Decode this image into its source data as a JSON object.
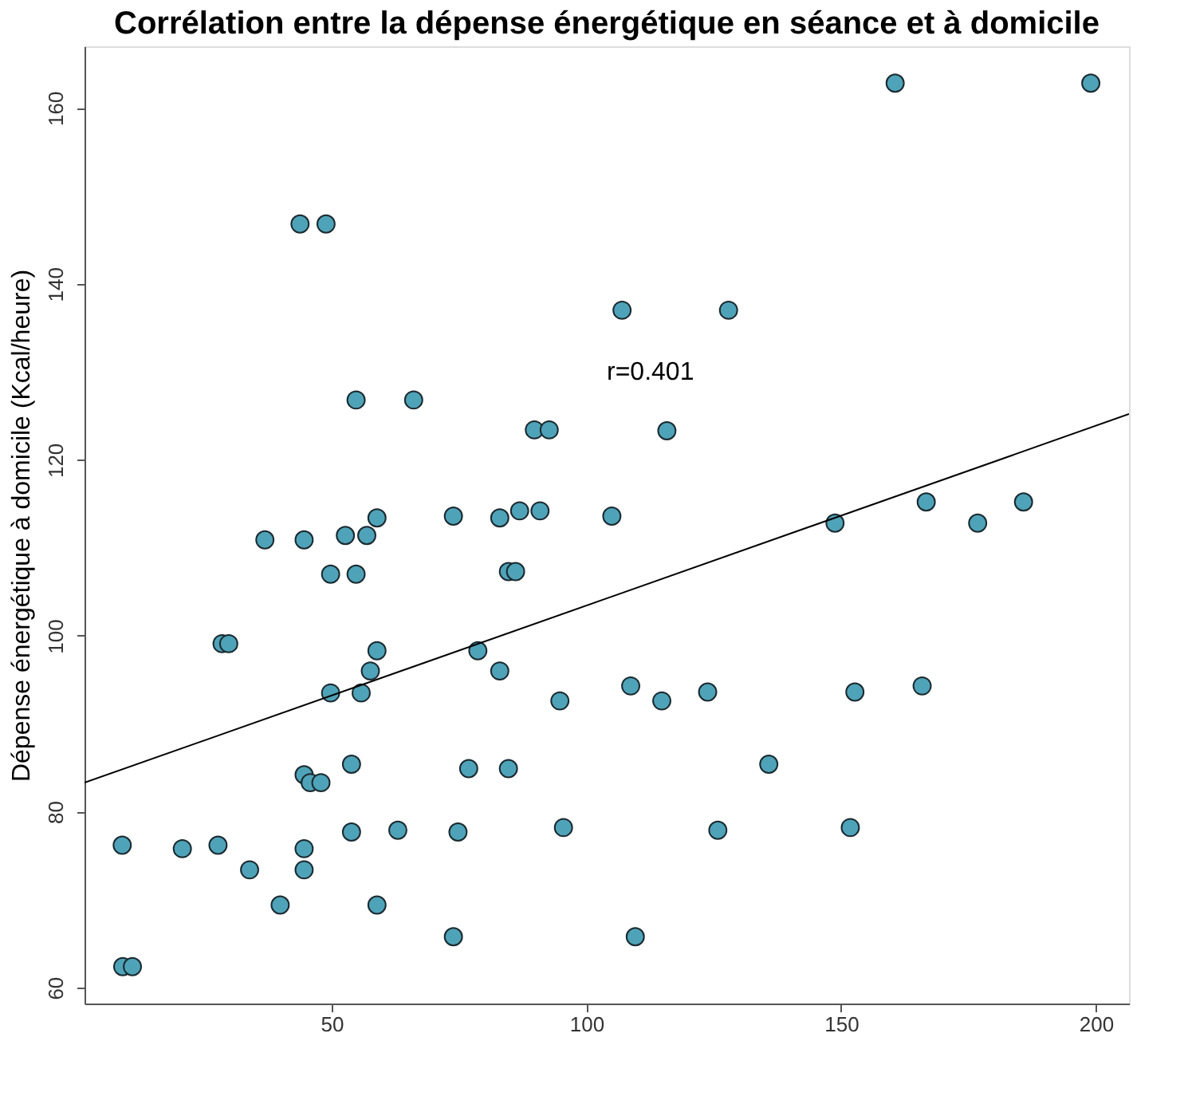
{
  "chart_data": {
    "type": "scatter",
    "title": "Corrélation entre la dépense énergétique en séance et à domicile",
    "ylabel": "Dépense énergétique à domicile (Kcal/heure)",
    "xlim": [
      1.5,
      206.5
    ],
    "ylim": [
      58.2,
      167
    ],
    "xticks": [
      50,
      100,
      150,
      200
    ],
    "yticks": [
      60,
      80,
      100,
      120,
      140,
      160
    ],
    "annotations": [
      "r=0.401"
    ],
    "series": [
      {
        "color": "#4fa3b8",
        "marker": "circle",
        "x": [
          8.9,
          9.0,
          10.9,
          20.7,
          27.7,
          33.9,
          39.9,
          44.6,
          44.6,
          44.6,
          45.8,
          47.9,
          53.9,
          53.9,
          63.0,
          58.9,
          73.9,
          74.8,
          76.9,
          84.7,
          95.5,
          94.8,
          83.0,
          78.7,
          58.9,
          57.6,
          49.8,
          55.8,
          28.5,
          29.8,
          49.8,
          54.8,
          84.7,
          86.1,
          36.9,
          44.6,
          52.7,
          56.9,
          58.9,
          73.9,
          83.0,
          86.9,
          90.9,
          43.8,
          48.9,
          54.8,
          66.1,
          89.8,
          92.7,
          160.6,
          199.0,
          107.0,
          127.9,
          115.8,
          105.0,
          148.8,
          166.7,
          176.8,
          185.8,
          108.7,
          114.8,
          123.8,
          152.7,
          165.9,
          135.8,
          125.8,
          151.8,
          109.6
        ],
        "values": [
          76.2,
          62.4,
          62.4,
          75.8,
          76.2,
          73.4,
          69.4,
          75.8,
          73.4,
          84.2,
          83.3,
          83.3,
          85.4,
          77.7,
          77.9,
          69.4,
          65.8,
          77.7,
          84.9,
          84.9,
          78.2,
          92.6,
          96.0,
          98.3,
          98.3,
          96.0,
          93.5,
          93.5,
          99.1,
          99.1,
          107.0,
          107.0,
          107.3,
          107.3,
          110.9,
          110.9,
          111.4,
          111.4,
          113.4,
          113.6,
          113.4,
          114.2,
          114.2,
          146.8,
          146.8,
          126.8,
          126.8,
          123.4,
          123.4,
          162.8,
          162.8,
          137.0,
          137.0,
          123.3,
          113.6,
          112.8,
          115.2,
          112.8,
          115.2,
          94.3,
          92.6,
          93.6,
          93.6,
          94.3,
          85.4,
          77.9,
          78.2,
          65.8
        ]
      },
      {
        "type": "line",
        "color": "#000000",
        "line_style": "solid",
        "marker": "none",
        "x": [
          1.5,
          206.5
        ],
        "values": [
          83.3,
          125.2
        ]
      }
    ]
  }
}
